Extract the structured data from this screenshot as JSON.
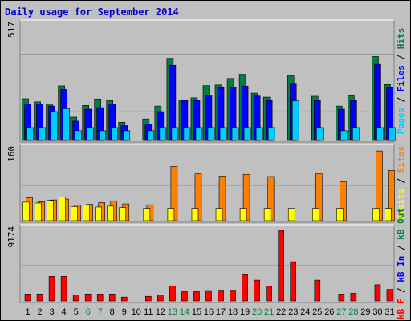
{
  "chart_data": {
    "type": "bar",
    "title": "Daily usage for September 2014",
    "categories": [
      "1",
      "2",
      "3",
      "4",
      "5",
      "6",
      "7",
      "8",
      "9",
      "10",
      "11",
      "12",
      "13",
      "14",
      "15",
      "16",
      "17",
      "18",
      "19",
      "20",
      "21",
      "22",
      "23",
      "24",
      "25",
      "26",
      "27",
      "28",
      "29",
      "30",
      "31"
    ],
    "weekend_days": [
      "6",
      "7",
      "13",
      "14",
      "20",
      "21",
      "27",
      "28"
    ],
    "panels": [
      {
        "name": "hits-files-pages",
        "ymax_label": "517",
        "ylim": [
          0,
          517
        ],
        "legend": [
          {
            "text": "Pages",
            "color": "#00ccff"
          },
          {
            "text": " / ",
            "color": "#000000"
          },
          {
            "text": "Files",
            "color": "#0000ff"
          },
          {
            "text": " / ",
            "color": "#000000"
          },
          {
            "text": "Hits",
            "color": "#008040"
          }
        ],
        "series": [
          {
            "name": "Hits",
            "color": "#008040",
            "values": [
              188,
              174,
              164,
              246,
              105,
              158,
              187,
              180,
              82,
              0,
              97,
              155,
              370,
              183,
              192,
              247,
              250,
              279,
              298,
              213,
              195,
              0,
              291,
              0,
              199,
              0,
              155,
              201,
              0,
              378,
              252
            ]
          },
          {
            "name": "Files",
            "color": "#0000ff",
            "values": [
              164,
              164,
              155,
              230,
              87,
              141,
              148,
              164,
              67,
              0,
              74,
              130,
              339,
              180,
              180,
              204,
              238,
              238,
              245,
              200,
              180,
              0,
              254,
              0,
              180,
              0,
              141,
              180,
              0,
              343,
              238
            ]
          },
          {
            "name": "Pages",
            "color": "#00ccff",
            "values": [
              58,
              58,
              130,
              143,
              44,
              58,
              44,
              58,
              44,
              0,
              44,
              58,
              58,
              58,
              58,
              58,
              58,
              58,
              58,
              58,
              58,
              0,
              179,
              0,
              58,
              0,
              44,
              58,
              0,
              58,
              58
            ]
          }
        ]
      },
      {
        "name": "visits-sites",
        "ymax_label": "160",
        "ylim": [
          0,
          160
        ],
        "legend": [
          {
            "text": "Visits",
            "color": "#ffff00"
          },
          {
            "text": " / ",
            "color": "#000000"
          },
          {
            "text": "Sites",
            "color": "#ff8000"
          }
        ],
        "series": [
          {
            "name": "Sites",
            "color": "#ff8000",
            "values": [
              52,
              43,
              47,
              49,
              35,
              37,
              41,
              45,
              38,
              0,
              36,
              0,
              123,
              0,
              106,
              0,
              101,
              0,
              105,
              0,
              100,
              0,
              0,
              0,
              106,
              0,
              88,
              0,
              0,
              158,
              114
            ]
          },
          {
            "name": "Visits",
            "color": "#ffff00",
            "values": [
              42,
              40,
              46,
              54,
              32,
              35,
              31,
              33,
              30,
              0,
              28,
              0,
              28,
              0,
              28,
              0,
              28,
              0,
              28,
              0,
              28,
              0,
              28,
              0,
              28,
              0,
              28,
              0,
              0,
              28,
              28
            ]
          }
        ]
      },
      {
        "name": "kbytes",
        "ymax_label": "9174",
        "ylim": [
          0,
          9174
        ],
        "legend": [
          {
            "text": "kB F",
            "color": "#ff0000"
          },
          {
            "text": " / ",
            "color": "#000000"
          },
          {
            "text": "kB In",
            "color": "#0000ff"
          },
          {
            "text": " / ",
            "color": "#000000"
          },
          {
            "text": "kB Out",
            "color": "#008040"
          }
        ],
        "series": [
          {
            "name": "kB F",
            "color": "#ff0000",
            "values": [
              900,
              900,
              3200,
              3200,
              800,
              900,
              900,
              900,
              500,
              0,
              600,
              800,
              1900,
              1200,
              1200,
              1350,
              1400,
              1400,
              3400,
              2700,
              1900,
              9174,
              5100,
              0,
              2700,
              0,
              900,
              1000,
              0,
              2100,
              1500
            ]
          }
        ]
      }
    ]
  }
}
